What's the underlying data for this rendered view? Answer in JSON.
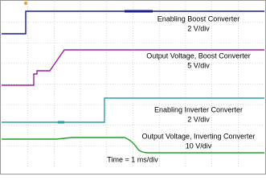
{
  "labels": [
    {
      "name": "Enabling Boost Converter",
      "scale": "2 V/div"
    },
    {
      "name": "Output Voltage, Boost Converter",
      "scale": "5 V/div"
    },
    {
      "name": "Enabling Inverter Converter",
      "scale": "2 V/div"
    },
    {
      "name": "Output Voltage, Inverting Converter",
      "scale": "10 V/div"
    }
  ],
  "time_scale": "Time = 1 ms/div"
}
